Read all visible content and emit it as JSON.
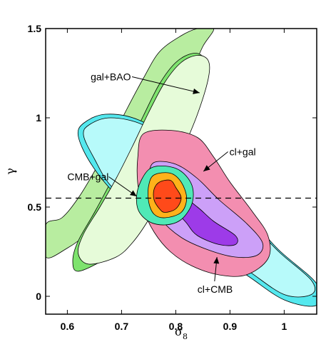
{
  "chart_data": {
    "type": "contour",
    "xlabel": "σ",
    "xlabel_subscript": "8",
    "ylabel": "γ",
    "xlim": [
      0.56,
      1.06
    ],
    "ylim": [
      -0.1,
      1.5
    ],
    "x_ticks": [
      0.6,
      0.7,
      0.8,
      0.9,
      1.0
    ],
    "x_tick_labels": [
      "0.6",
      "0.7",
      "0.8",
      "0.9",
      "1"
    ],
    "y_ticks": [
      0,
      0.5,
      1.0,
      1.5
    ],
    "y_tick_labels": [
      "0",
      "0.5",
      "1",
      "1.5"
    ],
    "reference_line": {
      "gamma": 0.55,
      "style": "dashed"
    },
    "contours": [
      {
        "name": "gal+BAO",
        "level": "95%",
        "color": "#b8eda0",
        "points": [
          [
            0.56,
            0.22
          ],
          [
            0.6,
            0.27
          ],
          [
            0.64,
            0.36
          ],
          [
            0.68,
            0.49
          ],
          [
            0.71,
            0.63
          ],
          [
            0.76,
            0.85
          ],
          [
            0.8,
            1.06
          ],
          [
            0.83,
            1.26
          ],
          [
            0.85,
            1.4
          ],
          [
            0.87,
            1.5
          ],
          [
            0.84,
            1.5
          ],
          [
            0.81,
            1.46
          ],
          [
            0.77,
            1.37
          ],
          [
            0.74,
            1.22
          ],
          [
            0.71,
            1.05
          ],
          [
            0.68,
            0.87
          ],
          [
            0.65,
            0.7
          ],
          [
            0.62,
            0.55
          ],
          [
            0.59,
            0.44
          ],
          [
            0.56,
            0.4
          ]
        ]
      },
      {
        "name": "gal+BAO",
        "level": "68%",
        "color": "#7ee36e",
        "points": [
          [
            0.62,
            0.14
          ],
          [
            0.67,
            0.21
          ],
          [
            0.71,
            0.31
          ],
          [
            0.74,
            0.45
          ],
          [
            0.77,
            0.62
          ],
          [
            0.8,
            0.84
          ],
          [
            0.83,
            1.06
          ],
          [
            0.85,
            1.24
          ],
          [
            0.85,
            1.34
          ],
          [
            0.83,
            1.36
          ],
          [
            0.8,
            1.31
          ],
          [
            0.77,
            1.19
          ],
          [
            0.74,
            1.01
          ],
          [
            0.71,
            0.82
          ],
          [
            0.68,
            0.64
          ],
          [
            0.65,
            0.47
          ],
          [
            0.62,
            0.31
          ],
          [
            0.61,
            0.2
          ]
        ]
      },
      {
        "name": "cl+CMB",
        "level": "95%",
        "color": "#54e8ee",
        "points": [
          [
            0.63,
            0.97
          ],
          [
            0.67,
            1.02
          ],
          [
            0.73,
            0.99
          ],
          [
            0.8,
            0.86
          ],
          [
            0.86,
            0.67
          ],
          [
            0.93,
            0.46
          ],
          [
            0.99,
            0.26
          ],
          [
            1.06,
            0.07
          ],
          [
            1.06,
            -0.05
          ],
          [
            1.0,
            -0.02
          ],
          [
            0.93,
            0.12
          ],
          [
            0.86,
            0.25
          ],
          [
            0.8,
            0.35
          ],
          [
            0.73,
            0.47
          ],
          [
            0.68,
            0.6
          ],
          [
            0.64,
            0.76
          ],
          [
            0.62,
            0.9
          ]
        ]
      },
      {
        "name": "cl+CMB",
        "level": "68%",
        "color": "#b7fafa",
        "points": [
          [
            0.64,
            0.96
          ],
          [
            0.68,
            1.0
          ],
          [
            0.74,
            0.96
          ],
          [
            0.8,
            0.83
          ],
          [
            0.86,
            0.65
          ],
          [
            0.93,
            0.44
          ],
          [
            0.99,
            0.25
          ],
          [
            1.05,
            0.09
          ],
          [
            1.05,
            0.01
          ],
          [
            1.0,
            0.01
          ],
          [
            0.93,
            0.15
          ],
          [
            0.86,
            0.28
          ],
          [
            0.8,
            0.38
          ],
          [
            0.73,
            0.5
          ],
          [
            0.68,
            0.62
          ],
          [
            0.65,
            0.77
          ],
          [
            0.63,
            0.9
          ]
        ]
      },
      {
        "name": "gal+BAO",
        "level": "68% (light)",
        "color": "#e6fbd9",
        "points": [
          [
            0.64,
            0.18
          ],
          [
            0.69,
            0.22
          ],
          [
            0.72,
            0.3
          ],
          [
            0.75,
            0.43
          ],
          [
            0.78,
            0.6
          ],
          [
            0.81,
            0.8
          ],
          [
            0.84,
            1.02
          ],
          [
            0.86,
            1.22
          ],
          [
            0.86,
            1.32
          ],
          [
            0.84,
            1.35
          ],
          [
            0.81,
            1.31
          ],
          [
            0.78,
            1.2
          ],
          [
            0.75,
            1.03
          ],
          [
            0.72,
            0.84
          ],
          [
            0.69,
            0.66
          ],
          [
            0.66,
            0.5
          ],
          [
            0.63,
            0.35
          ],
          [
            0.62,
            0.24
          ]
        ]
      },
      {
        "name": "cl+gal",
        "level": "95%",
        "color": "#f38eb0",
        "points": [
          [
            0.74,
            0.91
          ],
          [
            0.79,
            0.93
          ],
          [
            0.84,
            0.89
          ],
          [
            0.87,
            0.78
          ],
          [
            0.9,
            0.64
          ],
          [
            0.94,
            0.48
          ],
          [
            0.97,
            0.34
          ],
          [
            0.97,
            0.21
          ],
          [
            0.93,
            0.12
          ],
          [
            0.88,
            0.12
          ],
          [
            0.83,
            0.17
          ],
          [
            0.79,
            0.25
          ],
          [
            0.76,
            0.36
          ],
          [
            0.74,
            0.49
          ],
          [
            0.73,
            0.63
          ],
          [
            0.73,
            0.78
          ]
        ]
      },
      {
        "name": "cl+gal",
        "level": "68%",
        "color": "#ec5f86",
        "points": [
          [
            0.78,
            0.69
          ],
          [
            0.82,
            0.68
          ],
          [
            0.86,
            0.56
          ],
          [
            0.89,
            0.42
          ],
          [
            0.89,
            0.31
          ],
          [
            0.86,
            0.28
          ],
          [
            0.83,
            0.34
          ],
          [
            0.8,
            0.45
          ],
          [
            0.78,
            0.58
          ]
        ]
      },
      {
        "name": "cl+CMB",
        "level": "95% (lavender)",
        "color": "#cca0f8",
        "points": [
          [
            0.76,
            0.75
          ],
          [
            0.8,
            0.74
          ],
          [
            0.84,
            0.66
          ],
          [
            0.88,
            0.54
          ],
          [
            0.93,
            0.41
          ],
          [
            0.96,
            0.3
          ],
          [
            0.95,
            0.23
          ],
          [
            0.91,
            0.22
          ],
          [
            0.86,
            0.26
          ],
          [
            0.81,
            0.33
          ],
          [
            0.77,
            0.44
          ],
          [
            0.75,
            0.56
          ],
          [
            0.75,
            0.67
          ]
        ]
      },
      {
        "name": "cl+CMB",
        "level": "68%",
        "color": "#9d3be8",
        "points": [
          [
            0.81,
            0.56
          ],
          [
            0.84,
            0.5
          ],
          [
            0.87,
            0.42
          ],
          [
            0.91,
            0.34
          ],
          [
            0.91,
            0.29
          ],
          [
            0.88,
            0.29
          ],
          [
            0.84,
            0.34
          ],
          [
            0.82,
            0.41
          ],
          [
            0.8,
            0.49
          ]
        ]
      },
      {
        "name": "CMB+gal",
        "level": "95%",
        "color": "#4fe9b6",
        "points": [
          [
            0.75,
            0.71
          ],
          [
            0.78,
            0.73
          ],
          [
            0.81,
            0.7
          ],
          [
            0.83,
            0.62
          ],
          [
            0.83,
            0.52
          ],
          [
            0.81,
            0.43
          ],
          [
            0.78,
            0.4
          ],
          [
            0.75,
            0.42
          ],
          [
            0.73,
            0.49
          ],
          [
            0.73,
            0.6
          ]
        ]
      },
      {
        "name": "CMB+gal",
        "level": "68%",
        "color": "#ffb21a",
        "points": [
          [
            0.76,
            0.68
          ],
          [
            0.79,
            0.69
          ],
          [
            0.81,
            0.64
          ],
          [
            0.82,
            0.55
          ],
          [
            0.81,
            0.47
          ],
          [
            0.78,
            0.44
          ],
          [
            0.76,
            0.46
          ],
          [
            0.75,
            0.53
          ],
          [
            0.75,
            0.62
          ]
        ]
      },
      {
        "name": "CMB+gal",
        "level": "core",
        "color": "#ff4a1a",
        "points": [
          [
            0.77,
            0.64
          ],
          [
            0.79,
            0.65
          ],
          [
            0.8,
            0.61
          ],
          [
            0.81,
            0.55
          ],
          [
            0.8,
            0.49
          ],
          [
            0.78,
            0.47
          ],
          [
            0.77,
            0.49
          ],
          [
            0.76,
            0.54
          ],
          [
            0.76,
            0.6
          ]
        ]
      }
    ],
    "annotations": [
      {
        "text": "gal+BAO",
        "x": 0.643,
        "y": 1.21,
        "arrow_to": [
          0.844,
          1.14
        ]
      },
      {
        "text": "cl+gal",
        "x": 0.899,
        "y": 0.79,
        "arrow_to": [
          0.851,
          0.7
        ]
      },
      {
        "text": "CMB+gal",
        "x": 0.6,
        "y": 0.65,
        "arrow_to": [
          0.728,
          0.56
        ]
      },
      {
        "text": "cl+CMB",
        "x": 0.84,
        "y": 0.02,
        "arrow_to": [
          0.876,
          0.22
        ]
      }
    ]
  }
}
